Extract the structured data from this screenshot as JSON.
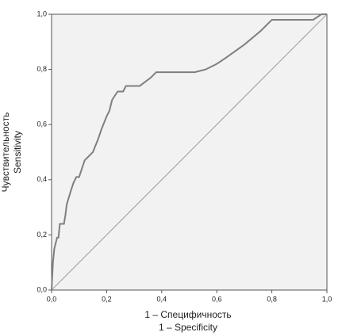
{
  "chart_data": {
    "type": "line",
    "xlabel": [
      "1 – Специфичность",
      "1 – Specificity"
    ],
    "ylabel": [
      "Чувствительность",
      "Sensitivity"
    ],
    "xlim": [
      0,
      1
    ],
    "ylim": [
      0,
      1
    ],
    "xticks": [
      {
        "value": 0,
        "label": "0,0"
      },
      {
        "value": 0.2,
        "label": "0,2"
      },
      {
        "value": 0.4,
        "label": "0,4"
      },
      {
        "value": 0.6,
        "label": "0,6"
      },
      {
        "value": 0.8,
        "label": "0,8"
      },
      {
        "value": 1,
        "label": "1,0"
      }
    ],
    "yticks": [
      {
        "value": 0,
        "label": "0,0"
      },
      {
        "value": 0.2,
        "label": "0,2"
      },
      {
        "value": 0.4,
        "label": "0,4"
      },
      {
        "value": 0.6,
        "label": "0,6"
      },
      {
        "value": 0.8,
        "label": "0,8"
      },
      {
        "value": 1,
        "label": "1,0"
      }
    ],
    "background": "#f2f2f2",
    "series": [
      {
        "color": "#7f7f7f",
        "x": [
          0,
          0.005,
          0.01,
          0.02,
          0.025,
          0.03,
          0.045,
          0.05,
          0.055,
          0.07,
          0.08,
          0.09,
          0.1,
          0.12,
          0.15,
          0.17,
          0.18,
          0.2,
          0.21,
          0.22,
          0.24,
          0.26,
          0.27,
          0.32,
          0.36,
          0.38,
          0.52,
          0.56,
          0.6,
          0.63,
          0.7,
          0.76,
          0.8,
          0.95,
          0.98,
          1
        ],
        "values": [
          0,
          0.1,
          0.15,
          0.19,
          0.19,
          0.24,
          0.24,
          0.27,
          0.31,
          0.36,
          0.39,
          0.41,
          0.41,
          0.47,
          0.5,
          0.55,
          0.58,
          0.63,
          0.65,
          0.69,
          0.72,
          0.72,
          0.74,
          0.74,
          0.77,
          0.79,
          0.79,
          0.8,
          0.82,
          0.84,
          0.89,
          0.94,
          0.98,
          0.98,
          1,
          1
        ]
      },
      {
        "color": "#a6a6a6",
        "x": [
          0,
          1
        ],
        "values": [
          0,
          1
        ]
      }
    ]
  }
}
